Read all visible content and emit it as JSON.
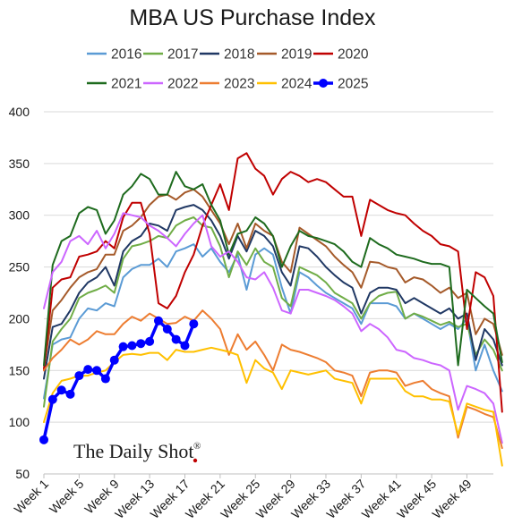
{
  "chart_data": {
    "type": "line",
    "title": "MBA US Purchase Index",
    "ylim": [
      50,
      400
    ],
    "yticks": [
      50,
      100,
      150,
      200,
      250,
      300,
      350,
      400
    ],
    "xlim": [
      1,
      52
    ],
    "xtick_weeks": [
      1,
      5,
      9,
      13,
      17,
      21,
      25,
      29,
      33,
      37,
      41,
      45,
      49
    ],
    "xtick_labels": [
      "Week 1",
      "Week 5",
      "Week 9",
      "Week 13",
      "Week 17",
      "Week 21",
      "Week 25",
      "Week 29",
      "Week 33",
      "Week 37",
      "Week 41",
      "Week 45",
      "Week 49"
    ],
    "grid": "horizontal",
    "legend_position": "top",
    "watermark": "The Daily Shot",
    "watermark_mark": "®",
    "series": [
      {
        "name": "2016",
        "color": "#5b9bd5",
        "values": [
          123,
          175,
          180,
          182,
          200,
          210,
          208,
          215,
          212,
          240,
          248,
          252,
          252,
          258,
          250,
          265,
          268,
          272,
          260,
          268,
          255,
          245,
          262,
          228,
          262,
          268,
          262,
          230,
          205,
          245,
          240,
          232,
          225,
          220,
          215,
          210,
          195,
          215,
          215,
          215,
          212,
          200,
          205,
          200,
          195,
          190,
          195,
          190,
          200,
          150,
          175,
          150,
          130
        ]
      },
      {
        "name": "2017",
        "color": "#70ad47",
        "values": [
          115,
          178,
          190,
          200,
          220,
          225,
          228,
          232,
          225,
          258,
          270,
          272,
          275,
          280,
          278,
          290,
          295,
          298,
          290,
          288,
          270,
          240,
          265,
          252,
          268,
          255,
          250,
          220,
          212,
          250,
          246,
          242,
          235,
          225,
          220,
          215,
          200,
          215,
          222,
          225,
          226,
          200,
          205,
          202,
          198,
          194,
          197,
          192,
          195,
          165,
          180,
          170,
          150
        ]
      },
      {
        "name": "2018",
        "color": "#203864",
        "values": [
          142,
          192,
          195,
          208,
          225,
          235,
          240,
          250,
          232,
          265,
          275,
          280,
          292,
          290,
          285,
          305,
          308,
          310,
          305,
          295,
          280,
          258,
          280,
          265,
          285,
          280,
          270,
          245,
          232,
          270,
          268,
          260,
          250,
          242,
          235,
          230,
          205,
          225,
          230,
          230,
          228,
          215,
          220,
          215,
          210,
          205,
          210,
          200,
          205,
          160,
          190,
          180,
          155
        ]
      },
      {
        "name": "2019",
        "color": "#a55a2a",
        "values": [
          152,
          208,
          218,
          230,
          240,
          245,
          248,
          262,
          262,
          285,
          290,
          298,
          310,
          318,
          320,
          315,
          322,
          325,
          318,
          305,
          292,
          272,
          292,
          268,
          292,
          285,
          280,
          255,
          245,
          288,
          282,
          276,
          270,
          260,
          252,
          245,
          230,
          255,
          254,
          250,
          248,
          235,
          240,
          238,
          232,
          225,
          230,
          220,
          225,
          185,
          200,
          195,
          165
        ]
      },
      {
        "name": "2020",
        "color": "#c00000",
        "values": [
          150,
          230,
          238,
          240,
          260,
          262,
          265,
          275,
          268,
          298,
          312,
          312,
          282,
          215,
          210,
          222,
          245,
          262,
          290,
          310,
          330,
          305,
          355,
          360,
          345,
          338,
          320,
          335,
          342,
          338,
          332,
          335,
          332,
          325,
          318,
          318,
          280,
          315,
          310,
          305,
          302,
          300,
          292,
          285,
          280,
          272,
          270,
          265,
          190,
          245,
          240,
          222,
          110
        ]
      },
      {
        "name": "2021",
        "color": "#1e6b1e",
        "values": [
          155,
          252,
          275,
          280,
          302,
          308,
          305,
          282,
          295,
          320,
          328,
          340,
          335,
          320,
          320,
          342,
          328,
          325,
          330,
          310,
          295,
          262,
          282,
          285,
          298,
          292,
          280,
          250,
          270,
          285,
          280,
          278,
          275,
          272,
          265,
          255,
          250,
          278,
          272,
          268,
          262,
          260,
          258,
          255,
          253,
          253,
          250,
          155,
          228,
          220,
          212,
          205,
          158
        ]
      },
      {
        "name": "2022",
        "color": "#cc66ff",
        "values": [
          210,
          245,
          255,
          275,
          280,
          272,
          285,
          268,
          282,
          302,
          300,
          298,
          290,
          285,
          278,
          270,
          282,
          292,
          300,
          270,
          260,
          265,
          255,
          240,
          238,
          245,
          230,
          208,
          205,
          228,
          228,
          225,
          222,
          218,
          212,
          205,
          188,
          195,
          190,
          182,
          170,
          168,
          162,
          160,
          157,
          155,
          150,
          112,
          135,
          132,
          128,
          118,
          80
        ]
      },
      {
        "name": "2023",
        "color": "#ed7d31",
        "values": [
          150,
          162,
          170,
          180,
          175,
          180,
          188,
          185,
          185,
          195,
          202,
          198,
          205,
          200,
          195,
          196,
          202,
          198,
          208,
          200,
          190,
          165,
          185,
          170,
          178,
          165,
          150,
          175,
          170,
          168,
          165,
          162,
          158,
          150,
          148,
          145,
          125,
          148,
          150,
          150,
          148,
          135,
          138,
          140,
          132,
          128,
          125,
          85,
          115,
          112,
          108,
          105,
          75
        ]
      },
      {
        "name": "2024",
        "color": "#ffc000",
        "values": [
          100,
          128,
          140,
          142,
          145,
          145,
          148,
          150,
          158,
          165,
          166,
          165,
          167,
          167,
          160,
          170,
          168,
          168,
          170,
          172,
          170,
          168,
          165,
          138,
          160,
          152,
          148,
          132,
          150,
          148,
          146,
          148,
          150,
          142,
          140,
          138,
          118,
          142,
          142,
          142,
          142,
          130,
          125,
          125,
          122,
          122,
          120,
          88,
          118,
          115,
          112,
          110,
          58
        ]
      },
      {
        "name": "2025",
        "color": "#0000ff",
        "marker": true,
        "values": [
          83,
          122,
          131,
          127,
          145,
          151,
          150,
          142,
          160,
          173,
          174,
          176,
          178,
          198,
          190,
          180,
          174,
          195
        ]
      }
    ]
  }
}
